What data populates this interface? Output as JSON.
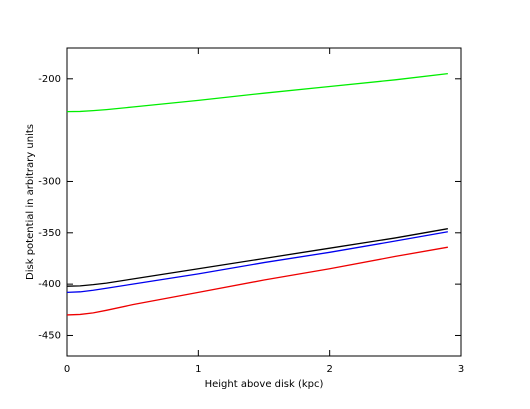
{
  "chart_data": {
    "type": "line",
    "x_label": "Height above disk (kpc)",
    "y_label": "Disk potential in arbitrary units",
    "xlim": [
      0,
      3
    ],
    "xticks": [
      0,
      1,
      2,
      3
    ],
    "ylim": [
      -470,
      -170
    ],
    "yticks": [
      -200,
      -300,
      -350,
      -400,
      -450
    ],
    "x": [
      0,
      0.1,
      0.2,
      0.3,
      0.5,
      1,
      1.5,
      2,
      2.5,
      2.9
    ],
    "series": [
      {
        "color": "#00ee00",
        "values": [
          -232,
          -231.8,
          -231,
          -230,
          -227.5,
          -221,
          -214,
          -207.5,
          -201,
          -195
        ]
      },
      {
        "color": "#000000",
        "values": [
          -402,
          -401.7,
          -400.5,
          -399,
          -395,
          -385,
          -375,
          -365,
          -355,
          -346
        ]
      },
      {
        "color": "#0000ee",
        "values": [
          -408,
          -407.5,
          -406,
          -404,
          -400,
          -390,
          -379,
          -369,
          -358,
          -349
        ]
      },
      {
        "color": "#ee0000",
        "values": [
          -430,
          -429.5,
          -428,
          -425.5,
          -420,
          -408,
          -396,
          -385,
          -373,
          -364
        ]
      }
    ]
  }
}
